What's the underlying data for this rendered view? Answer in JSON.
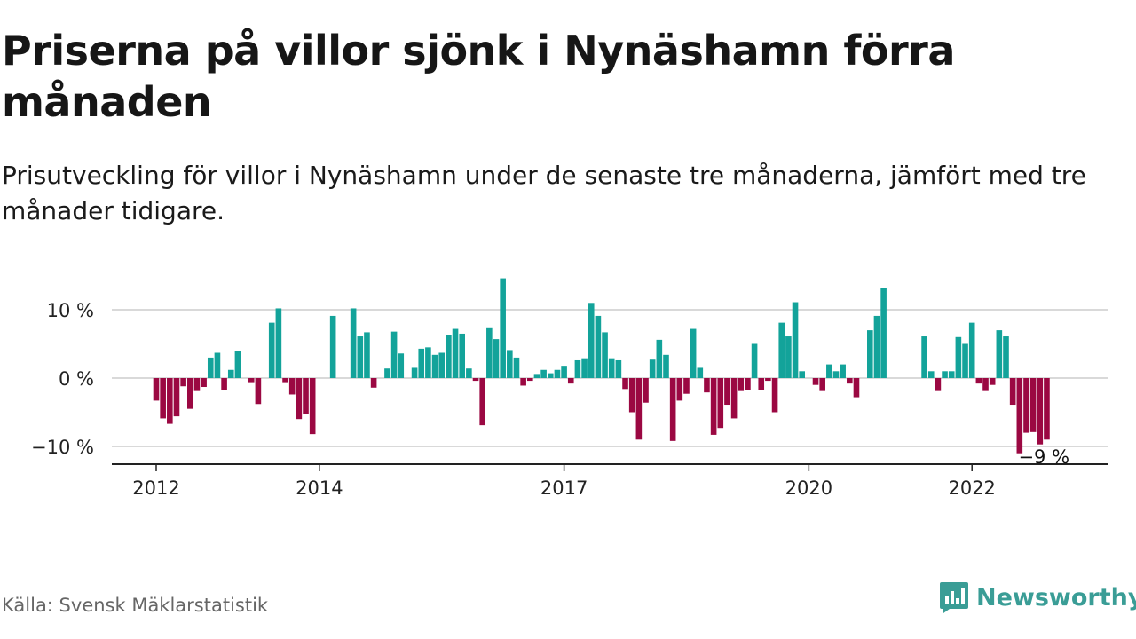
{
  "title": "Priserna på villor sjönk i Nynäshamn förra månaden",
  "subtitle": "Prisutveckling för villor i Nynäshamn under de senaste tre månaderna, jämfört med tre månader tidigare.",
  "source": "Källa: Svensk Mäklarstatistik",
  "brand": {
    "name": "Newsworthy",
    "icon": "newsworthy-logo-icon",
    "color": "#3a9d96"
  },
  "colors": {
    "positive": "#13a39a",
    "negative": "#9b0842",
    "grid": "#d9d9d9",
    "axis": "#222222"
  },
  "chart_data": {
    "type": "bar",
    "y_unit": "%",
    "ylim": [
      -13,
      15
    ],
    "y_ticks": [
      {
        "value": 10,
        "label": "10 %"
      },
      {
        "value": 0,
        "label": "0 %"
      },
      {
        "value": -10,
        "label": "−10 %"
      }
    ],
    "x_ticks": [
      {
        "date": "2012-01",
        "label": "2012"
      },
      {
        "date": "2014-01",
        "label": "2014"
      },
      {
        "date": "2017-01",
        "label": "2017"
      },
      {
        "date": "2020-01",
        "label": "2020"
      },
      {
        "date": "2022-01",
        "label": "2022"
      }
    ],
    "annotation": {
      "date": "2022-12",
      "label": "−9 %"
    },
    "grid": true,
    "series": [
      {
        "values": [
          {
            "date": "2012-01",
            "value": -3.3
          },
          {
            "date": "2012-02",
            "value": -5.9
          },
          {
            "date": "2012-03",
            "value": -6.7
          },
          {
            "date": "2012-04",
            "value": -5.6
          },
          {
            "date": "2012-05",
            "value": -1.2
          },
          {
            "date": "2012-06",
            "value": -4.5
          },
          {
            "date": "2012-07",
            "value": -1.9
          },
          {
            "date": "2012-08",
            "value": -1.3
          },
          {
            "date": "2012-09",
            "value": 3.0
          },
          {
            "date": "2012-10",
            "value": 3.7
          },
          {
            "date": "2012-11",
            "value": -1.8
          },
          {
            "date": "2012-12",
            "value": 1.2
          },
          {
            "date": "2013-01",
            "value": 4.0
          },
          {
            "date": "2013-02",
            "value": 0.0
          },
          {
            "date": "2013-03",
            "value": -0.6
          },
          {
            "date": "2013-04",
            "value": -3.8
          },
          {
            "date": "2013-05",
            "value": 0.0
          },
          {
            "date": "2013-06",
            "value": 8.1
          },
          {
            "date": "2013-07",
            "value": 10.2
          },
          {
            "date": "2013-08",
            "value": -0.6
          },
          {
            "date": "2013-09",
            "value": -2.4
          },
          {
            "date": "2013-10",
            "value": -6.0
          },
          {
            "date": "2013-11",
            "value": -5.2
          },
          {
            "date": "2013-12",
            "value": -8.2
          },
          {
            "date": "2014-01",
            "value": 0.0
          },
          {
            "date": "2014-02",
            "value": 0.0
          },
          {
            "date": "2014-03",
            "value": 9.1
          },
          {
            "date": "2014-04",
            "value": 0.0
          },
          {
            "date": "2014-05",
            "value": 0.0
          },
          {
            "date": "2014-06",
            "value": 10.2
          },
          {
            "date": "2014-07",
            "value": 6.1
          },
          {
            "date": "2014-08",
            "value": 6.7
          },
          {
            "date": "2014-09",
            "value": -1.4
          },
          {
            "date": "2014-10",
            "value": 0.0
          },
          {
            "date": "2014-11",
            "value": 1.4
          },
          {
            "date": "2014-12",
            "value": 6.8
          },
          {
            "date": "2015-01",
            "value": 3.6
          },
          {
            "date": "2015-02",
            "value": 0.0
          },
          {
            "date": "2015-03",
            "value": 1.5
          },
          {
            "date": "2015-04",
            "value": 4.3
          },
          {
            "date": "2015-05",
            "value": 4.5
          },
          {
            "date": "2015-06",
            "value": 3.4
          },
          {
            "date": "2015-07",
            "value": 3.7
          },
          {
            "date": "2015-08",
            "value": 6.3
          },
          {
            "date": "2015-09",
            "value": 7.2
          },
          {
            "date": "2015-10",
            "value": 6.5
          },
          {
            "date": "2015-11",
            "value": 1.4
          },
          {
            "date": "2015-12",
            "value": -0.4
          },
          {
            "date": "2016-01",
            "value": -6.9
          },
          {
            "date": "2016-02",
            "value": 7.3
          },
          {
            "date": "2016-03",
            "value": 5.7
          },
          {
            "date": "2016-04",
            "value": 14.6
          },
          {
            "date": "2016-05",
            "value": 4.1
          },
          {
            "date": "2016-06",
            "value": 3.0
          },
          {
            "date": "2016-07",
            "value": -1.1
          },
          {
            "date": "2016-08",
            "value": -0.4
          },
          {
            "date": "2016-09",
            "value": 0.6
          },
          {
            "date": "2016-10",
            "value": 1.2
          },
          {
            "date": "2016-11",
            "value": 0.7
          },
          {
            "date": "2016-12",
            "value": 1.2
          },
          {
            "date": "2017-01",
            "value": 1.8
          },
          {
            "date": "2017-02",
            "value": -0.8
          },
          {
            "date": "2017-03",
            "value": 2.6
          },
          {
            "date": "2017-04",
            "value": 2.9
          },
          {
            "date": "2017-05",
            "value": 11.0
          },
          {
            "date": "2017-06",
            "value": 9.1
          },
          {
            "date": "2017-07",
            "value": 6.7
          },
          {
            "date": "2017-08",
            "value": 2.9
          },
          {
            "date": "2017-09",
            "value": 2.6
          },
          {
            "date": "2017-10",
            "value": -1.6
          },
          {
            "date": "2017-11",
            "value": -5.0
          },
          {
            "date": "2017-12",
            "value": -9.0
          },
          {
            "date": "2018-01",
            "value": -3.6
          },
          {
            "date": "2018-02",
            "value": 2.7
          },
          {
            "date": "2018-03",
            "value": 5.6
          },
          {
            "date": "2018-04",
            "value": 3.4
          },
          {
            "date": "2018-05",
            "value": -9.2
          },
          {
            "date": "2018-06",
            "value": -3.3
          },
          {
            "date": "2018-07",
            "value": -2.3
          },
          {
            "date": "2018-08",
            "value": 7.2
          },
          {
            "date": "2018-09",
            "value": 1.5
          },
          {
            "date": "2018-10",
            "value": -2.1
          },
          {
            "date": "2018-11",
            "value": -8.3
          },
          {
            "date": "2018-12",
            "value": -7.3
          },
          {
            "date": "2019-01",
            "value": -3.9
          },
          {
            "date": "2019-02",
            "value": -5.9
          },
          {
            "date": "2019-03",
            "value": -1.9
          },
          {
            "date": "2019-04",
            "value": -1.7
          },
          {
            "date": "2019-05",
            "value": 5.0
          },
          {
            "date": "2019-06",
            "value": -1.8
          },
          {
            "date": "2019-07",
            "value": -0.4
          },
          {
            "date": "2019-08",
            "value": -5.0
          },
          {
            "date": "2019-09",
            "value": 8.1
          },
          {
            "date": "2019-10",
            "value": 6.1
          },
          {
            "date": "2019-11",
            "value": 11.1
          },
          {
            "date": "2019-12",
            "value": 1.0
          },
          {
            "date": "2020-01",
            "value": 0.0
          },
          {
            "date": "2020-02",
            "value": -1.0
          },
          {
            "date": "2020-03",
            "value": -1.9
          },
          {
            "date": "2020-04",
            "value": 2.0
          },
          {
            "date": "2020-05",
            "value": 1.0
          },
          {
            "date": "2020-06",
            "value": 2.0
          },
          {
            "date": "2020-07",
            "value": -0.8
          },
          {
            "date": "2020-08",
            "value": -2.8
          },
          {
            "date": "2020-09",
            "value": 0.0
          },
          {
            "date": "2020-10",
            "value": 7.0
          },
          {
            "date": "2020-11",
            "value": 9.1
          },
          {
            "date": "2020-12",
            "value": 13.2
          },
          {
            "date": "2021-01",
            "value": 0.0
          },
          {
            "date": "2021-02",
            "value": 0.0
          },
          {
            "date": "2021-03",
            "value": 0.0
          },
          {
            "date": "2021-04",
            "value": 0.0
          },
          {
            "date": "2021-05",
            "value": 0.0
          },
          {
            "date": "2021-06",
            "value": 6.1
          },
          {
            "date": "2021-07",
            "value": 1.0
          },
          {
            "date": "2021-08",
            "value": -1.9
          },
          {
            "date": "2021-09",
            "value": 1.0
          },
          {
            "date": "2021-10",
            "value": 1.0
          },
          {
            "date": "2021-11",
            "value": 6.0
          },
          {
            "date": "2021-12",
            "value": 5.0
          },
          {
            "date": "2022-01",
            "value": 8.1
          },
          {
            "date": "2022-02",
            "value": -0.8
          },
          {
            "date": "2022-03",
            "value": -1.9
          },
          {
            "date": "2022-04",
            "value": -1.0
          },
          {
            "date": "2022-05",
            "value": 7.0
          },
          {
            "date": "2022-06",
            "value": 6.1
          },
          {
            "date": "2022-07",
            "value": -3.9
          },
          {
            "date": "2022-08",
            "value": -11.0
          },
          {
            "date": "2022-09",
            "value": -8.0
          },
          {
            "date": "2022-10",
            "value": -7.9
          },
          {
            "date": "2022-11",
            "value": -9.7
          },
          {
            "date": "2022-12",
            "value": -9.0
          }
        ]
      }
    ]
  }
}
